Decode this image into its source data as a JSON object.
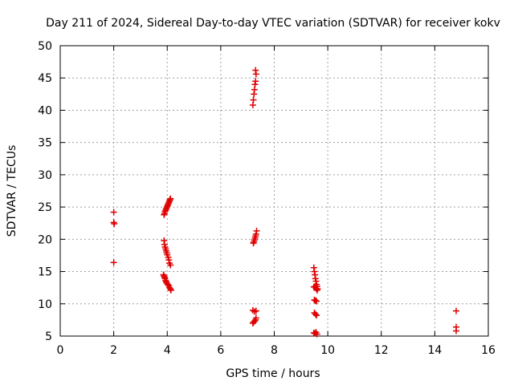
{
  "chart_data": {
    "type": "scatter",
    "title": "Day 211 of 2024, Sidereal Day-to-day VTEC variation (SDTVAR) for receiver kokv",
    "xlabel": "GPS time / hours",
    "ylabel": "SDTVAR / TECUs",
    "xlim": [
      0,
      16
    ],
    "ylim": [
      5,
      50
    ],
    "xticks": [
      0,
      2,
      4,
      6,
      8,
      10,
      12,
      14,
      16
    ],
    "yticks": [
      5,
      10,
      15,
      20,
      25,
      30,
      35,
      40,
      45,
      50
    ],
    "grid": true,
    "marker": "plus",
    "color": "#e00000",
    "series": [
      {
        "name": "SDTVAR",
        "points": [
          [
            2.0,
            24.2
          ],
          [
            2.0,
            22.6
          ],
          [
            2.02,
            22.4
          ],
          [
            2.0,
            16.4
          ],
          [
            3.88,
            23.8
          ],
          [
            3.9,
            24.0
          ],
          [
            3.92,
            24.3
          ],
          [
            3.94,
            24.5
          ],
          [
            3.96,
            24.7
          ],
          [
            3.98,
            24.9
          ],
          [
            4.0,
            25.1
          ],
          [
            4.02,
            25.3
          ],
          [
            4.04,
            25.5
          ],
          [
            4.06,
            25.7
          ],
          [
            4.08,
            25.9
          ],
          [
            4.1,
            26.1
          ],
          [
            4.12,
            26.3
          ],
          [
            3.88,
            19.8
          ],
          [
            3.9,
            19.2
          ],
          [
            3.92,
            18.8
          ],
          [
            3.94,
            18.5
          ],
          [
            3.96,
            18.2
          ],
          [
            3.98,
            17.9
          ],
          [
            4.0,
            17.6
          ],
          [
            4.04,
            17.2
          ],
          [
            4.06,
            16.8
          ],
          [
            4.08,
            16.3
          ],
          [
            4.12,
            16.0
          ],
          [
            3.86,
            14.5
          ],
          [
            3.88,
            14.3
          ],
          [
            3.9,
            14.1
          ],
          [
            3.92,
            13.9
          ],
          [
            3.94,
            13.6
          ],
          [
            3.96,
            13.4
          ],
          [
            3.98,
            13.2
          ],
          [
            4.02,
            13.0
          ],
          [
            4.06,
            12.8
          ],
          [
            4.08,
            12.5
          ],
          [
            4.12,
            12.3
          ],
          [
            4.14,
            12.1
          ],
          [
            7.3,
            46.2
          ],
          [
            7.32,
            45.6
          ],
          [
            7.3,
            44.5
          ],
          [
            7.28,
            44.0
          ],
          [
            7.26,
            43.2
          ],
          [
            7.24,
            42.5
          ],
          [
            7.22,
            41.6
          ],
          [
            7.2,
            40.8
          ],
          [
            7.34,
            21.3
          ],
          [
            7.32,
            20.8
          ],
          [
            7.3,
            20.5
          ],
          [
            7.28,
            20.2
          ],
          [
            7.26,
            19.9
          ],
          [
            7.24,
            19.6
          ],
          [
            7.22,
            19.4
          ],
          [
            7.2,
            9.0
          ],
          [
            7.26,
            8.8
          ],
          [
            7.32,
            8.9
          ],
          [
            7.32,
            7.8
          ],
          [
            7.3,
            7.5
          ],
          [
            7.26,
            7.3
          ],
          [
            7.22,
            7.1
          ],
          [
            7.2,
            7.0
          ],
          [
            9.48,
            15.6
          ],
          [
            9.5,
            15.0
          ],
          [
            9.52,
            14.5
          ],
          [
            9.54,
            13.9
          ],
          [
            9.56,
            13.5
          ],
          [
            9.58,
            13.0
          ],
          [
            9.6,
            12.7
          ],
          [
            9.56,
            12.4
          ],
          [
            9.52,
            12.7
          ],
          [
            9.48,
            12.6
          ],
          [
            9.62,
            12.3
          ],
          [
            9.6,
            12.1
          ],
          [
            9.5,
            10.6
          ],
          [
            9.54,
            10.5
          ],
          [
            9.58,
            10.4
          ],
          [
            9.5,
            8.6
          ],
          [
            9.54,
            8.4
          ],
          [
            9.58,
            8.2
          ],
          [
            9.48,
            5.5
          ],
          [
            9.52,
            5.4
          ],
          [
            9.56,
            5.6
          ],
          [
            9.6,
            5.3
          ],
          [
            14.8,
            8.9
          ],
          [
            14.8,
            6.4
          ],
          [
            14.8,
            5.8
          ]
        ]
      }
    ]
  }
}
